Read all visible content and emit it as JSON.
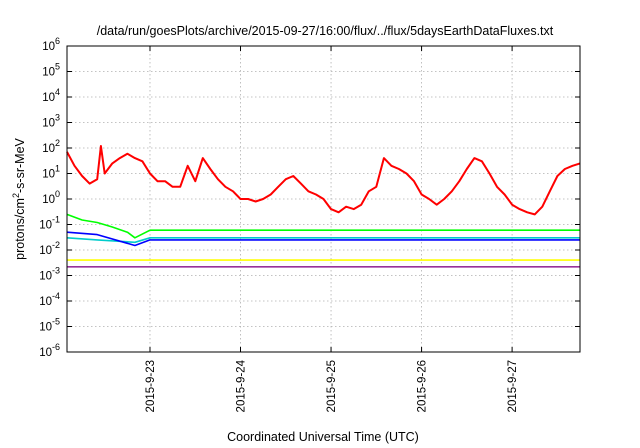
{
  "chart_data": {
    "type": "line",
    "title": "/data/run/goesPlots/archive/2015-09-27/16:00/flux/../flux/5daysEarthDataFluxes.txt",
    "xlabel": "Coordinated Universal Time (UTC)",
    "ylabel_parts": [
      "protons/cm",
      "2",
      "-s-sr-MeV"
    ],
    "yscale": "log",
    "ylim": [
      1e-06,
      1000000.0
    ],
    "y_ticks": [
      {
        "base": "10",
        "exp": "-6",
        "value": 1e-06
      },
      {
        "base": "10",
        "exp": "-5",
        "value": 1e-05
      },
      {
        "base": "10",
        "exp": "-4",
        "value": 0.0001
      },
      {
        "base": "10",
        "exp": "-3",
        "value": 0.001
      },
      {
        "base": "10",
        "exp": "-2",
        "value": 0.01
      },
      {
        "base": "10",
        "exp": "-1",
        "value": 0.1
      },
      {
        "base": "10",
        "exp": "0",
        "value": 1.0
      },
      {
        "base": "10",
        "exp": "1",
        "value": 10.0
      },
      {
        "base": "10",
        "exp": "2",
        "value": 100.0
      },
      {
        "base": "10",
        "exp": "3",
        "value": 1000.0
      },
      {
        "base": "10",
        "exp": "4",
        "value": 10000.0
      },
      {
        "base": "10",
        "exp": "5",
        "value": 100000.0
      },
      {
        "base": "10",
        "exp": "6",
        "value": 1000000.0
      }
    ],
    "xlim": [
      "2015-09-22 02:00",
      "2015-09-27 18:00"
    ],
    "x_ticks": [
      {
        "label": "2015-9-23",
        "value": "2015-09-23 00:00"
      },
      {
        "label": "2015-9-24",
        "value": "2015-09-24 00:00"
      },
      {
        "label": "2015-9-25",
        "value": "2015-09-25 00:00"
      },
      {
        "label": "2015-9-26",
        "value": "2015-09-26 00:00"
      },
      {
        "label": "2015-9-27",
        "value": "2015-09-27 00:00"
      }
    ],
    "grid": true,
    "series": [
      {
        "color": "#ff0000",
        "data": [
          [
            "2015-09-22 02:00",
            70
          ],
          [
            "2015-09-22 04:00",
            20
          ],
          [
            "2015-09-22 06:00",
            8
          ],
          [
            "2015-09-22 08:00",
            4
          ],
          [
            "2015-09-22 10:00",
            6
          ],
          [
            "2015-09-22 11:00",
            120
          ],
          [
            "2015-09-22 12:00",
            10
          ],
          [
            "2015-09-22 14:00",
            25
          ],
          [
            "2015-09-22 16:00",
            40
          ],
          [
            "2015-09-22 18:00",
            60
          ],
          [
            "2015-09-22 20:00",
            40
          ],
          [
            "2015-09-22 22:00",
            30
          ],
          [
            "2015-09-23 00:00",
            10
          ],
          [
            "2015-09-23 02:00",
            5
          ],
          [
            "2015-09-23 04:00",
            5
          ],
          [
            "2015-09-23 06:00",
            3
          ],
          [
            "2015-09-23 08:00",
            3
          ],
          [
            "2015-09-23 10:00",
            20
          ],
          [
            "2015-09-23 12:00",
            5
          ],
          [
            "2015-09-23 14:00",
            40
          ],
          [
            "2015-09-23 16:00",
            15
          ],
          [
            "2015-09-23 18:00",
            6
          ],
          [
            "2015-09-23 20:00",
            3
          ],
          [
            "2015-09-23 22:00",
            2
          ],
          [
            "2015-09-24 00:00",
            1
          ],
          [
            "2015-09-24 02:00",
            1
          ],
          [
            "2015-09-24 04:00",
            0.8
          ],
          [
            "2015-09-24 06:00",
            1
          ],
          [
            "2015-09-24 08:00",
            1.5
          ],
          [
            "2015-09-24 10:00",
            3
          ],
          [
            "2015-09-24 12:00",
            6
          ],
          [
            "2015-09-24 14:00",
            8
          ],
          [
            "2015-09-24 16:00",
            4
          ],
          [
            "2015-09-24 18:00",
            2
          ],
          [
            "2015-09-24 20:00",
            1.5
          ],
          [
            "2015-09-24 22:00",
            1
          ],
          [
            "2015-09-25 00:00",
            0.4
          ],
          [
            "2015-09-25 02:00",
            0.3
          ],
          [
            "2015-09-25 04:00",
            0.5
          ],
          [
            "2015-09-25 06:00",
            0.4
          ],
          [
            "2015-09-25 08:00",
            0.6
          ],
          [
            "2015-09-25 10:00",
            2
          ],
          [
            "2015-09-25 12:00",
            3
          ],
          [
            "2015-09-25 14:00",
            40
          ],
          [
            "2015-09-25 16:00",
            20
          ],
          [
            "2015-09-25 18:00",
            15
          ],
          [
            "2015-09-25 20:00",
            10
          ],
          [
            "2015-09-25 22:00",
            5
          ],
          [
            "2015-09-26 00:00",
            1.5
          ],
          [
            "2015-09-26 02:00",
            1
          ],
          [
            "2015-09-26 04:00",
            0.6
          ],
          [
            "2015-09-26 06:00",
            1
          ],
          [
            "2015-09-26 08:00",
            2
          ],
          [
            "2015-09-26 10:00",
            5
          ],
          [
            "2015-09-26 12:00",
            15
          ],
          [
            "2015-09-26 14:00",
            40
          ],
          [
            "2015-09-26 16:00",
            30
          ],
          [
            "2015-09-26 18:00",
            10
          ],
          [
            "2015-09-26 20:00",
            3
          ],
          [
            "2015-09-26 22:00",
            1.5
          ],
          [
            "2015-09-27 00:00",
            0.6
          ],
          [
            "2015-09-27 02:00",
            0.4
          ],
          [
            "2015-09-27 04:00",
            0.3
          ],
          [
            "2015-09-27 06:00",
            0.25
          ],
          [
            "2015-09-27 08:00",
            0.5
          ],
          [
            "2015-09-27 10:00",
            2
          ],
          [
            "2015-09-27 12:00",
            8
          ],
          [
            "2015-09-27 14:00",
            15
          ],
          [
            "2015-09-27 16:00",
            20
          ],
          [
            "2015-09-27 18:00",
            25
          ]
        ]
      },
      {
        "color": "#00ff00",
        "data": [
          [
            "2015-09-22 02:00",
            0.25
          ],
          [
            "2015-09-22 06:00",
            0.15
          ],
          [
            "2015-09-22 10:00",
            0.12
          ],
          [
            "2015-09-22 14:00",
            0.08
          ],
          [
            "2015-09-22 18:00",
            0.05
          ],
          [
            "2015-09-22 20:00",
            0.03
          ],
          [
            "2015-09-23 00:00",
            0.06
          ],
          [
            "2015-09-23 12:00",
            0.06
          ],
          [
            "2015-09-24 00:00",
            0.06
          ],
          [
            "2015-09-24 12:00",
            0.06
          ],
          [
            "2015-09-25 00:00",
            0.06
          ],
          [
            "2015-09-25 12:00",
            0.06
          ],
          [
            "2015-09-26 00:00",
            0.06
          ],
          [
            "2015-09-26 12:00",
            0.06
          ],
          [
            "2015-09-27 00:00",
            0.06
          ],
          [
            "2015-09-27 18:00",
            0.06
          ]
        ]
      },
      {
        "color": "#00cccc",
        "data": [
          [
            "2015-09-22 02:00",
            0.03
          ],
          [
            "2015-09-22 10:00",
            0.025
          ],
          [
            "2015-09-22 20:00",
            0.02
          ],
          [
            "2015-09-23 00:00",
            0.03
          ],
          [
            "2015-09-24 00:00",
            0.03
          ],
          [
            "2015-09-25 00:00",
            0.03
          ],
          [
            "2015-09-26 00:00",
            0.03
          ],
          [
            "2015-09-27 00:00",
            0.03
          ],
          [
            "2015-09-27 18:00",
            0.03
          ]
        ]
      },
      {
        "color": "#0000ff",
        "data": [
          [
            "2015-09-22 02:00",
            0.05
          ],
          [
            "2015-09-22 10:00",
            0.04
          ],
          [
            "2015-09-22 20:00",
            0.015
          ],
          [
            "2015-09-23 00:00",
            0.025
          ],
          [
            "2015-09-24 00:00",
            0.025
          ],
          [
            "2015-09-25 00:00",
            0.025
          ],
          [
            "2015-09-26 00:00",
            0.025
          ],
          [
            "2015-09-27 00:00",
            0.025
          ],
          [
            "2015-09-27 18:00",
            0.025
          ]
        ]
      },
      {
        "color": "#ffff00",
        "data": [
          [
            "2015-09-22 02:00",
            0.004
          ],
          [
            "2015-09-23 00:00",
            0.004
          ],
          [
            "2015-09-24 00:00",
            0.004
          ],
          [
            "2015-09-25 00:00",
            0.004
          ],
          [
            "2015-09-26 00:00",
            0.004
          ],
          [
            "2015-09-27 00:00",
            0.004
          ],
          [
            "2015-09-27 18:00",
            0.004
          ]
        ]
      },
      {
        "color": "#993399",
        "data": [
          [
            "2015-09-22 02:00",
            0.0022
          ],
          [
            "2015-09-23 00:00",
            0.0022
          ],
          [
            "2015-09-24 00:00",
            0.0022
          ],
          [
            "2015-09-25 00:00",
            0.0022
          ],
          [
            "2015-09-26 00:00",
            0.0022
          ],
          [
            "2015-09-27 00:00",
            0.0022
          ],
          [
            "2015-09-27 18:00",
            0.0022
          ]
        ]
      }
    ]
  }
}
